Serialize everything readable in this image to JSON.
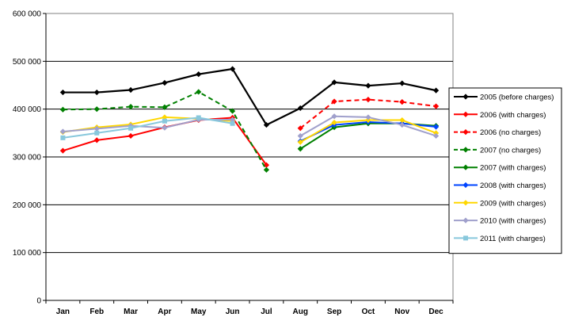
{
  "chart_data": {
    "type": "line",
    "categories": [
      "Jan",
      "Feb",
      "Mar",
      "Apr",
      "May",
      "Jun",
      "Jul",
      "Aug",
      "Sep",
      "Oct",
      "Nov",
      "Dec"
    ],
    "ylim": [
      0,
      600000
    ],
    "yticks": [
      0,
      100000,
      200000,
      300000,
      400000,
      500000,
      600000
    ],
    "ytick_labels": [
      "0",
      "100 000",
      "200 000",
      "300 000",
      "400 000",
      "500 000",
      "600 000"
    ],
    "grid": true,
    "legend_position": "right",
    "series": [
      {
        "name": "2005 (before charges)",
        "color": "#000000",
        "dash": false,
        "marker": "diamond",
        "values": [
          435000,
          435000,
          440000,
          455000,
          473000,
          484000,
          367000,
          402000,
          456000,
          449000,
          454000,
          439000
        ]
      },
      {
        "name": "2006 (with charges)",
        "color": "#ff0000",
        "dash": false,
        "marker": "diamond",
        "values": [
          313000,
          335000,
          344000,
          362000,
          377000,
          382000,
          283000,
          null,
          null,
          null,
          null,
          null
        ]
      },
      {
        "name": "2006 (no charges)",
        "color": "#ff0000",
        "dash": true,
        "marker": "diamond",
        "values": [
          null,
          null,
          null,
          null,
          null,
          null,
          null,
          360000,
          416000,
          420000,
          415000,
          406000
        ]
      },
      {
        "name": "2007 (no charges)",
        "color": "#008000",
        "dash": true,
        "marker": "diamond",
        "values": [
          399000,
          400000,
          405000,
          404000,
          436000,
          396000,
          273000,
          null,
          null,
          null,
          null,
          null
        ]
      },
      {
        "name": "2007 (with charges)",
        "color": "#008000",
        "dash": false,
        "marker": "diamond",
        "values": [
          null,
          null,
          null,
          null,
          null,
          null,
          null,
          317000,
          362000,
          370000,
          370000,
          365000
        ]
      },
      {
        "name": "2008 (with charges)",
        "color": "#0044ff",
        "dash": false,
        "marker": "diamond",
        "values": [
          null,
          null,
          null,
          null,
          null,
          null,
          null,
          333000,
          367000,
          373000,
          370000,
          363000
        ]
      },
      {
        "name": "2009 (with charges)",
        "color": "#ffd700",
        "dash": false,
        "marker": "diamond",
        "values": [
          352000,
          362000,
          368000,
          383000,
          380000,
          375000,
          null,
          331000,
          372000,
          377000,
          377000,
          350000
        ]
      },
      {
        "name": "2010 (with charges)",
        "color": "#a0a0cc",
        "dash": false,
        "marker": "diamond",
        "values": [
          353000,
          359000,
          365000,
          361000,
          378000,
          378000,
          null,
          344000,
          385000,
          383000,
          367000,
          344000
        ]
      },
      {
        "name": "2011 (with charges)",
        "color": "#88c8dc",
        "dash": false,
        "marker": "square",
        "values": [
          340000,
          350000,
          360000,
          375000,
          382000,
          370000,
          null,
          null,
          null,
          null,
          null,
          null
        ]
      }
    ]
  }
}
